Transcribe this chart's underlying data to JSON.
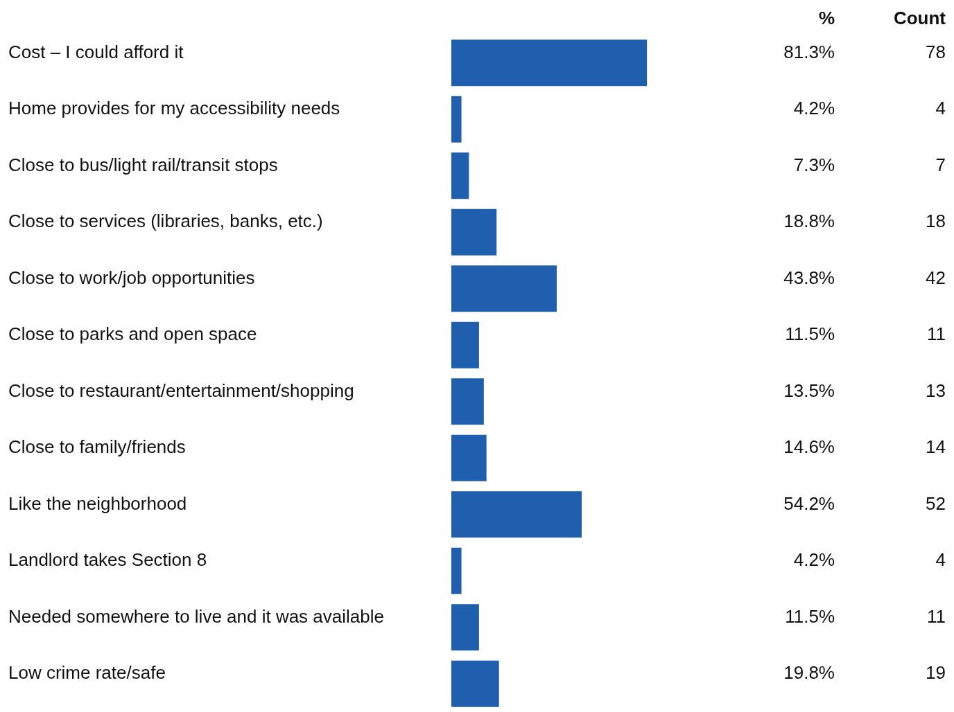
{
  "chart_data": {
    "type": "bar",
    "orientation": "horizontal",
    "categories": [
      "Cost – I could afford it",
      "Home provides for my accessibility needs",
      "Close to bus/light rail/transit stops",
      "Close to services (libraries, banks, etc.)",
      "Close to work/job opportunities",
      "Close to parks and open space",
      "Close to restaurant/entertainment/shopping",
      "Close to family/friends",
      "Like the neighborhood",
      "Landlord takes Section 8",
      "Needed somewhere to live and it was available",
      "Low crime rate/safe"
    ],
    "series": [
      {
        "name": "%",
        "color": "#1f5fad",
        "values": [
          81.3,
          4.2,
          7.3,
          18.8,
          43.8,
          11.5,
          13.5,
          14.6,
          54.2,
          4.2,
          11.5,
          19.8
        ],
        "value_labels": [
          "81.3%",
          "4.2%",
          "7.3%",
          "18.8%",
          "43.8%",
          "11.5%",
          "13.5%",
          "14.6%",
          "54.2%",
          "4.2%",
          "11.5%",
          "19.8%"
        ]
      }
    ],
    "annotations": [
      "Count",
      "78",
      "4",
      "7",
      "18",
      "42",
      "11",
      "13",
      "14",
      "52",
      "4",
      "11",
      "19"
    ]
  }
}
